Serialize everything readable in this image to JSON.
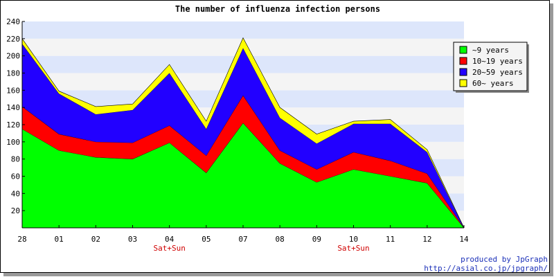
{
  "chart_data": {
    "type": "area",
    "stacked": true,
    "title": "The number of influenza infection persons",
    "categories": [
      "28",
      "01",
      "02",
      "03",
      "04",
      "05",
      "07",
      "08",
      "09",
      "10",
      "11",
      "12",
      "14"
    ],
    "category_sublabels": [
      "",
      "",
      "",
      "",
      "Sat+Sun",
      "",
      "",
      "",
      "",
      "Sat+Sun",
      "",
      "",
      ""
    ],
    "ylim": [
      0,
      240
    ],
    "yticks": [
      20,
      40,
      60,
      80,
      100,
      120,
      140,
      160,
      180,
      200,
      220,
      240
    ],
    "legend_position": "top-right",
    "series": [
      {
        "name": "~9 years",
        "color": "#00ff00",
        "values": [
          115,
          90,
          82,
          80,
          99,
          64,
          122,
          75,
          53,
          68,
          60,
          52,
          0
        ]
      },
      {
        "name": "10~19 years",
        "color": "#ff0000",
        "values": [
          26,
          19,
          18,
          19,
          20,
          20,
          32,
          15,
          15,
          20,
          18,
          11,
          0
        ]
      },
      {
        "name": "20~59 years",
        "color": "#2200ff",
        "values": [
          73,
          47,
          32,
          38,
          61,
          31,
          55,
          38,
          30,
          33,
          43,
          25,
          0
        ]
      },
      {
        "name": "60~ years",
        "color": "#ffff00",
        "values": [
          6,
          3,
          9,
          7,
          10,
          9,
          12,
          12,
          11,
          3,
          5,
          3,
          0
        ]
      }
    ]
  },
  "credit": {
    "line1": "produced by JpGraph",
    "line2": "http://asial.co.jp/jpgraph/"
  }
}
